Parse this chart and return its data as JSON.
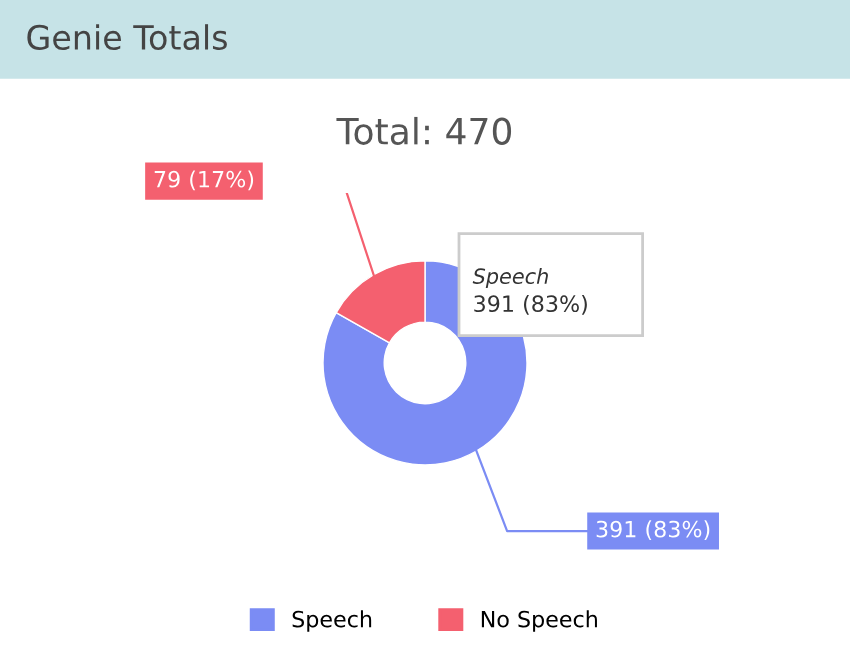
{
  "chart_data": {
    "type": "donut",
    "title": "Genie Totals",
    "subtitle": "Total: 470",
    "categories": [
      "Speech",
      "No Speech"
    ],
    "values": [
      391,
      79
    ],
    "colors": [
      "#7b8cf4",
      "#f4606f"
    ],
    "value_labels": [
      "391 (83%)",
      "79 (17%)"
    ],
    "annotations": [
      "Speech",
      "391 (83%)"
    ],
    "legend": "bottom"
  }
}
